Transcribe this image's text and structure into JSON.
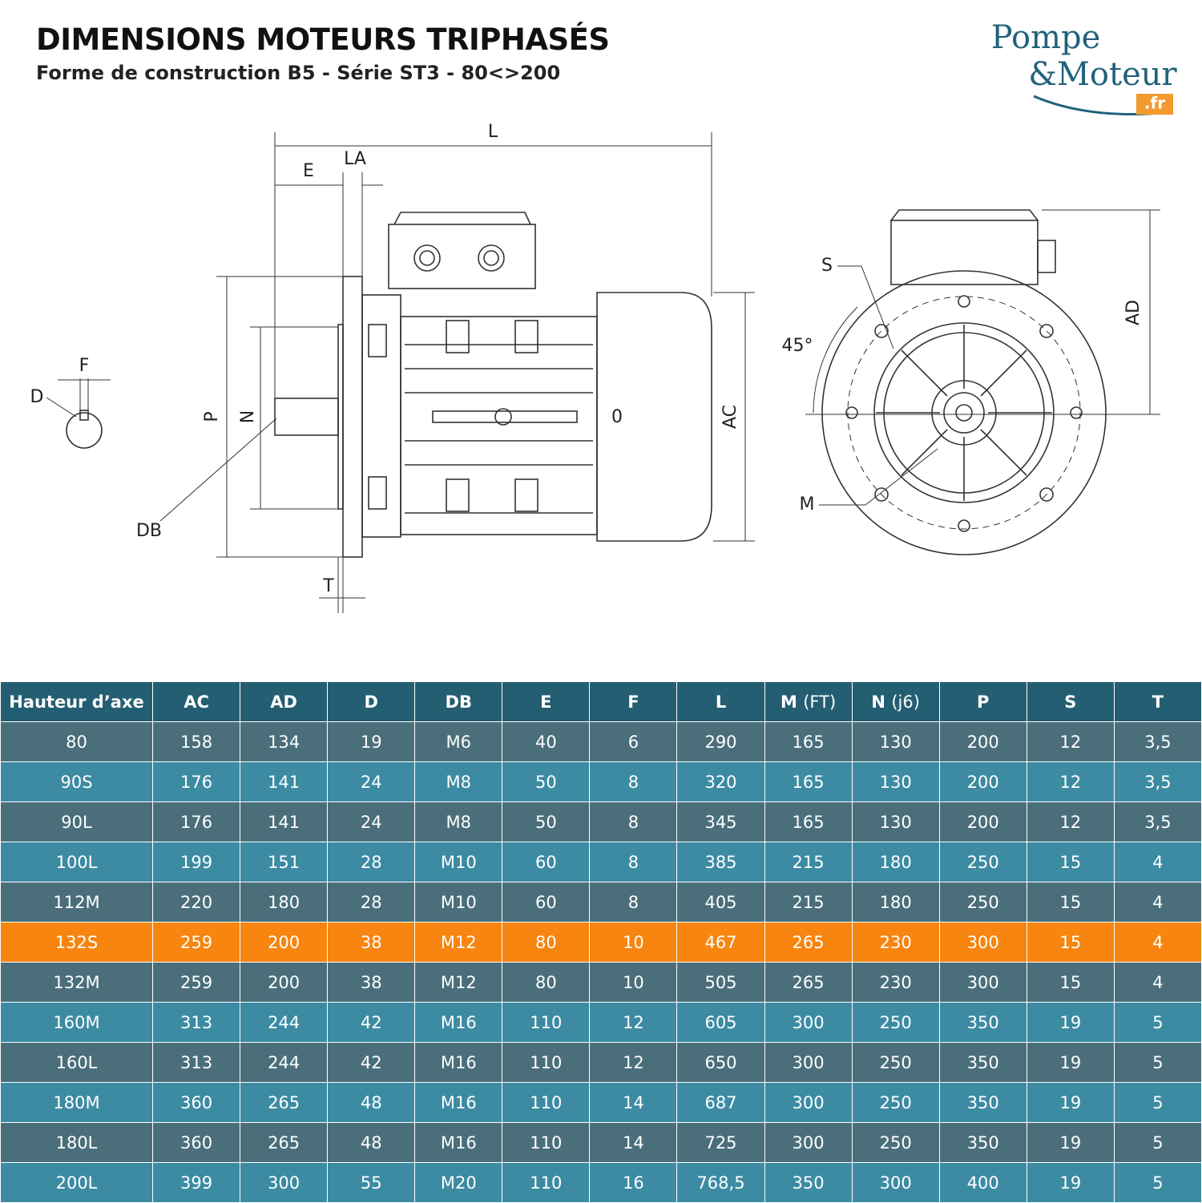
{
  "header": {
    "title": "DIMENSIONS MOTEURS TRIPHASÉS",
    "subtitle": "Forme de construction B5 - Série ST3 - 80<>200"
  },
  "logo": {
    "line1": "Pompe",
    "line2": "&Moteur",
    "suffix": ".fr"
  },
  "drawing": {
    "labels": {
      "L": "L",
      "E": "E",
      "LA": "LA",
      "F": "F",
      "D": "D",
      "P": "P",
      "N": "N",
      "DB": "DB",
      "T": "T",
      "AC": "AC",
      "AD": "AD",
      "S": "S",
      "angle": "45°",
      "M": "M",
      "zero": "0"
    }
  },
  "table": {
    "headers": [
      "Hauteur d’axe",
      "AC",
      "AD",
      "D",
      "DB",
      "E",
      "F",
      "L",
      {
        "label": "M",
        "note": "(FT)"
      },
      {
        "label": "N",
        "note": "(j6)"
      },
      "P",
      "S",
      "T"
    ],
    "rows": [
      [
        "80",
        "158",
        "134",
        "19",
        "M6",
        "40",
        "6",
        "290",
        "165",
        "130",
        "200",
        "12",
        "3,5"
      ],
      [
        "90S",
        "176",
        "141",
        "24",
        "M8",
        "50",
        "8",
        "320",
        "165",
        "130",
        "200",
        "12",
        "3,5"
      ],
      [
        "90L",
        "176",
        "141",
        "24",
        "M8",
        "50",
        "8",
        "345",
        "165",
        "130",
        "200",
        "12",
        "3,5"
      ],
      [
        "100L",
        "199",
        "151",
        "28",
        "M10",
        "60",
        "8",
        "385",
        "215",
        "180",
        "250",
        "15",
        "4"
      ],
      [
        "112M",
        "220",
        "180",
        "28",
        "M10",
        "60",
        "8",
        "405",
        "215",
        "180",
        "250",
        "15",
        "4"
      ],
      [
        "132S",
        "259",
        "200",
        "38",
        "M12",
        "80",
        "10",
        "467",
        "265",
        "230",
        "300",
        "15",
        "4"
      ],
      [
        "132M",
        "259",
        "200",
        "38",
        "M12",
        "80",
        "10",
        "505",
        "265",
        "230",
        "300",
        "15",
        "4"
      ],
      [
        "160M",
        "313",
        "244",
        "42",
        "M16",
        "110",
        "12",
        "605",
        "300",
        "250",
        "350",
        "19",
        "5"
      ],
      [
        "160L",
        "313",
        "244",
        "42",
        "M16",
        "110",
        "12",
        "650",
        "300",
        "250",
        "350",
        "19",
        "5"
      ],
      [
        "180M",
        "360",
        "265",
        "48",
        "M16",
        "110",
        "14",
        "687",
        "300",
        "250",
        "350",
        "19",
        "5"
      ],
      [
        "180L",
        "360",
        "265",
        "48",
        "M16",
        "110",
        "14",
        "725",
        "300",
        "250",
        "350",
        "19",
        "5"
      ],
      [
        "200L",
        "399",
        "300",
        "55",
        "M20",
        "110",
        "16",
        "768,5",
        "350",
        "300",
        "400",
        "19",
        "5"
      ]
    ],
    "header_color": "#245e72",
    "row_colors": [
      "#4a6f7b",
      "#3c8ba3"
    ],
    "highlight": {
      "row": 5,
      "color": "#f7850f"
    }
  }
}
